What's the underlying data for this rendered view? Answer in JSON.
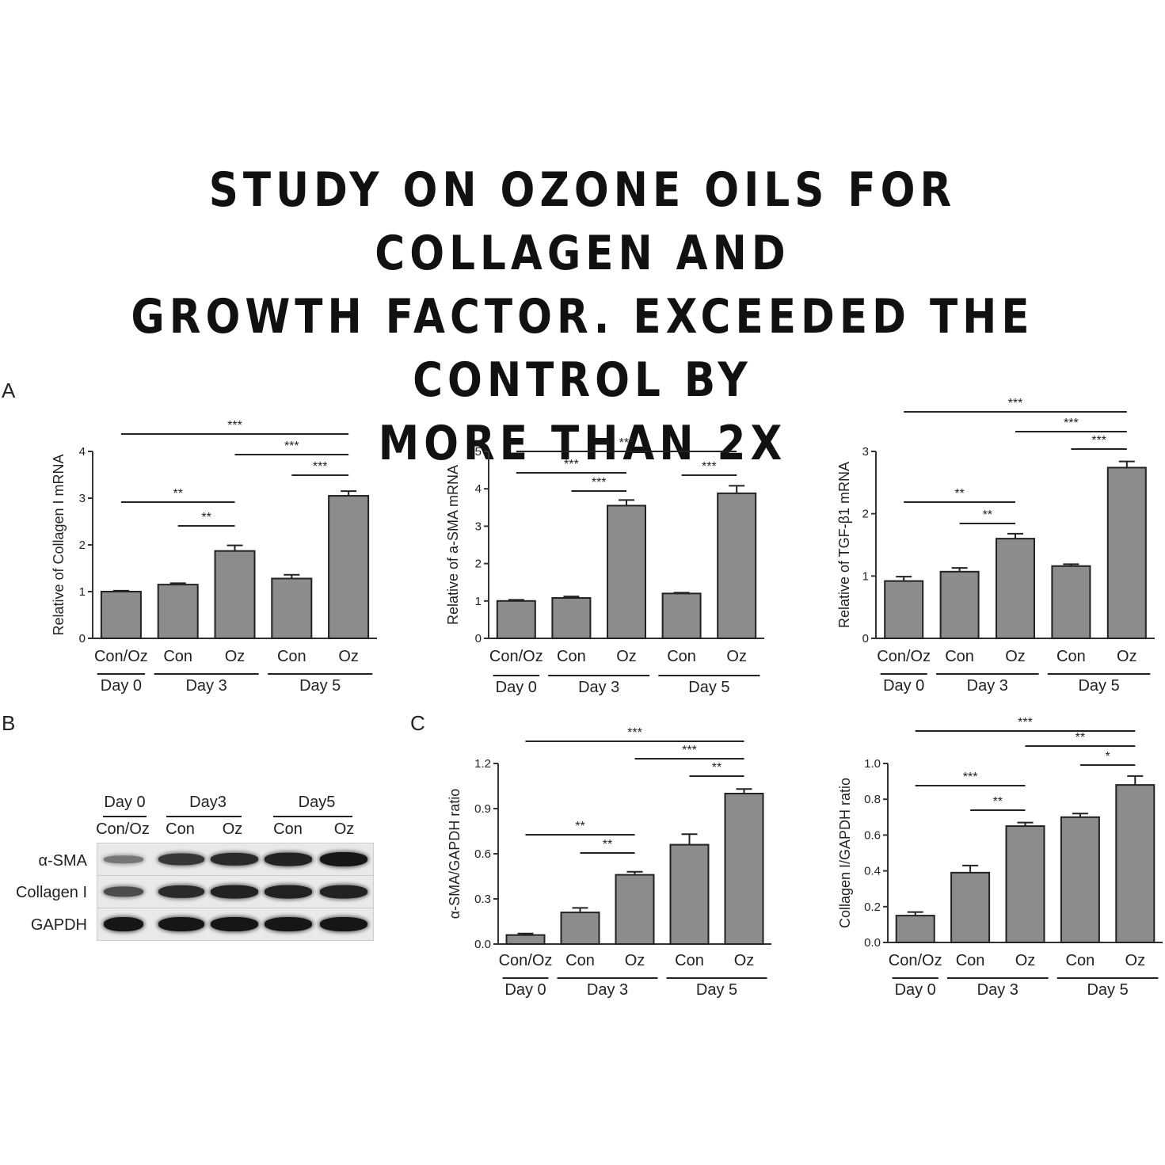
{
  "headline": {
    "line1": "STUDY ON OZONE OILS FOR COLLAGEN AND",
    "line2": "GROWTH FACTOR.  EXCEEDED THE CONTROL BY",
    "line3": "MORE THAN 2X"
  },
  "panels": {
    "a": "A",
    "b": "B",
    "c": "C"
  },
  "western_blot": {
    "groups": [
      "Day 0",
      "Day3",
      "Day5"
    ],
    "lanes": [
      "Con/Oz",
      "Con",
      "Oz",
      "Con",
      "Oz"
    ],
    "rows": [
      {
        "label": "α-SMA",
        "intensity": [
          0.3,
          0.75,
          0.85,
          0.9,
          1.0
        ]
      },
      {
        "label": "Collagen I",
        "intensity": [
          0.6,
          0.85,
          0.9,
          0.9,
          0.9
        ]
      },
      {
        "label": "GAPDH",
        "intensity": [
          1.0,
          1.0,
          1.0,
          1.0,
          1.0
        ]
      }
    ]
  },
  "chart_data": [
    {
      "type": "bar",
      "ylabel": "Relative of Collagen I mRNA",
      "categories": [
        "Con/Oz",
        "Con",
        "Oz",
        "Con",
        "Oz"
      ],
      "groups": [
        {
          "label": "Day 0",
          "span": [
            0,
            0
          ]
        },
        {
          "label": "Day 3",
          "span": [
            1,
            2
          ]
        },
        {
          "label": "Day 5",
          "span": [
            3,
            4
          ]
        }
      ],
      "values": [
        1.0,
        1.15,
        1.87,
        1.28,
        3.05
      ],
      "errors": [
        0.02,
        0.03,
        0.12,
        0.08,
        0.1
      ],
      "ylim": [
        0,
        4
      ],
      "yticks": [
        "0",
        "1",
        "2",
        "3",
        "4"
      ],
      "sig": [
        {
          "from": 0,
          "to": 4,
          "label": "***"
        },
        {
          "from": 2,
          "to": 4,
          "label": "***"
        },
        {
          "from": 3,
          "to": 4,
          "label": "***"
        },
        {
          "from": 0,
          "to": 2,
          "label": "**"
        },
        {
          "from": 1,
          "to": 2,
          "label": "**"
        }
      ]
    },
    {
      "type": "bar",
      "ylabel": "Relative of a-SMA mRNA",
      "categories": [
        "Con/Oz",
        "Con",
        "Oz",
        "Con",
        "Oz"
      ],
      "groups": [
        {
          "label": "Day 0",
          "span": [
            0,
            0
          ]
        },
        {
          "label": "Day 3",
          "span": [
            1,
            2
          ]
        },
        {
          "label": "Day 5",
          "span": [
            3,
            4
          ]
        }
      ],
      "values": [
        1.0,
        1.08,
        3.55,
        1.2,
        3.88
      ],
      "errors": [
        0.03,
        0.04,
        0.15,
        0.02,
        0.2
      ],
      "ylim": [
        0,
        5
      ],
      "yticks": [
        "0",
        "1",
        "2",
        "3",
        "4",
        "5"
      ],
      "sig": [
        {
          "from": 0,
          "to": 4,
          "label": "***"
        },
        {
          "from": 0,
          "to": 2,
          "label": "***"
        },
        {
          "from": 1,
          "to": 2,
          "label": "***"
        },
        {
          "from": 3,
          "to": 4,
          "label": "***"
        }
      ]
    },
    {
      "type": "bar",
      "ylabel": "Relative of TGF-β1 mRNA",
      "categories": [
        "Con/Oz",
        "Con",
        "Oz",
        "Con",
        "Oz"
      ],
      "groups": [
        {
          "label": "Day 0",
          "span": [
            0,
            0
          ]
        },
        {
          "label": "Day 3",
          "span": [
            1,
            2
          ]
        },
        {
          "label": "Day 5",
          "span": [
            3,
            4
          ]
        }
      ],
      "values": [
        0.92,
        1.07,
        1.6,
        1.16,
        2.74
      ],
      "errors": [
        0.07,
        0.06,
        0.08,
        0.03,
        0.1
      ],
      "ylim": [
        0,
        3
      ],
      "yticks": [
        "0",
        "1",
        "2",
        "3"
      ],
      "sig": [
        {
          "from": 0,
          "to": 4,
          "label": "***"
        },
        {
          "from": 2,
          "to": 4,
          "label": "***"
        },
        {
          "from": 3,
          "to": 4,
          "label": "***"
        },
        {
          "from": 0,
          "to": 2,
          "label": "**"
        },
        {
          "from": 1,
          "to": 2,
          "label": "**"
        }
      ]
    },
    {
      "type": "bar",
      "ylabel": "α-SMA/GAPDH ratio",
      "categories": [
        "Con/Oz",
        "Con",
        "Oz",
        "Con",
        "Oz"
      ],
      "groups": [
        {
          "label": "Day 0",
          "span": [
            0,
            0
          ]
        },
        {
          "label": "Day 3",
          "span": [
            1,
            2
          ]
        },
        {
          "label": "Day 5",
          "span": [
            3,
            4
          ]
        }
      ],
      "values": [
        0.06,
        0.21,
        0.46,
        0.66,
        1.0
      ],
      "errors": [
        0.01,
        0.03,
        0.02,
        0.07,
        0.03
      ],
      "ylim": [
        0,
        1.2
      ],
      "yticks": [
        "0.0",
        "0.3",
        "0.6",
        "0.9",
        "1.2"
      ],
      "sig": [
        {
          "from": 0,
          "to": 4,
          "label": "***"
        },
        {
          "from": 2,
          "to": 4,
          "label": "***"
        },
        {
          "from": 3,
          "to": 4,
          "label": "**"
        },
        {
          "from": 0,
          "to": 2,
          "label": "**"
        },
        {
          "from": 1,
          "to": 2,
          "label": "**"
        }
      ]
    },
    {
      "type": "bar",
      "ylabel": "Collagen I/GAPDH ratio",
      "categories": [
        "Con/Oz",
        "Con",
        "Oz",
        "Con",
        "Oz"
      ],
      "groups": [
        {
          "label": "Day 0",
          "span": [
            0,
            0
          ]
        },
        {
          "label": "Day 3",
          "span": [
            1,
            2
          ]
        },
        {
          "label": "Day 5",
          "span": [
            3,
            4
          ]
        }
      ],
      "values": [
        0.15,
        0.39,
        0.65,
        0.7,
        0.88
      ],
      "errors": [
        0.02,
        0.04,
        0.02,
        0.02,
        0.05
      ],
      "ylim": [
        0,
        1.0
      ],
      "yticks": [
        "0.0",
        "0.2",
        "0.4",
        "0.6",
        "0.8",
        "1.0"
      ],
      "sig": [
        {
          "from": 0,
          "to": 4,
          "label": "***"
        },
        {
          "from": 2,
          "to": 4,
          "label": "**"
        },
        {
          "from": 3,
          "to": 4,
          "label": "*"
        },
        {
          "from": 0,
          "to": 2,
          "label": "***"
        },
        {
          "from": 1,
          "to": 2,
          "label": "**"
        }
      ]
    }
  ]
}
